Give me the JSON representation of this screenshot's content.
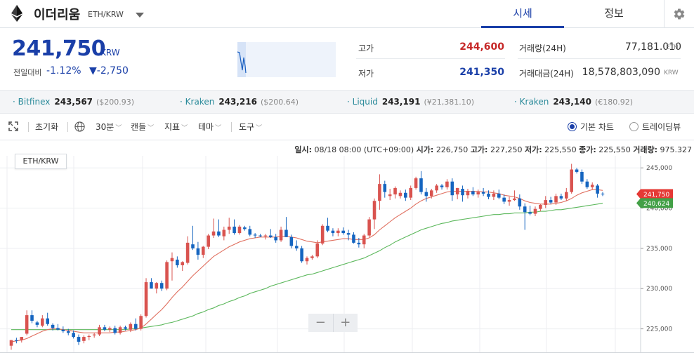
{
  "header": {
    "coin_name": "이더리움",
    "pair": "ETH/KRW",
    "tabs": [
      "시세",
      "정보"
    ]
  },
  "summary": {
    "price": "241,750",
    "unit": "KRW",
    "change_label": "전일대비",
    "change_rate": "-1.12%",
    "change_amount": "▼-2,750",
    "high_label": "고가",
    "high": "244,600",
    "low_label": "저가",
    "low": "241,350",
    "volume_label": "거래량(24H)",
    "volume": "77,181.010",
    "volume_unit": "ETH",
    "value_label": "거래대금(24H)",
    "value": "18,578,803,090",
    "value_unit": "KRW"
  },
  "exchanges": [
    {
      "name": "Bitfinex",
      "price": "243,567",
      "sub": "($200.93)"
    },
    {
      "name": "Kraken",
      "price": "243,216",
      "sub": "($200.64)"
    },
    {
      "name": "Liquid",
      "price": "243,191",
      "sub": "(¥21,381.10)"
    },
    {
      "name": "Kraken",
      "price": "243,140",
      "sub": "(€180.92)"
    }
  ],
  "toolbar": {
    "reset": "초기화",
    "interval": "30분",
    "candle": "캔들",
    "indicator": "지표",
    "theme": "테마",
    "tools": "도구",
    "basic_chart": "기본 차트",
    "tradingview": "트레이딩뷰"
  },
  "ohlc": {
    "time_label": "일시:",
    "time": "08/18 08:00 (UTC+09:00)",
    "open_label": "시가:",
    "open": "226,750",
    "high_label": "고가:",
    "high": "227,250",
    "low_label": "저가:",
    "low": "225,550",
    "close_label": "종가:",
    "close": "225,550",
    "volume_label": "거래량:",
    "volume": "975.327"
  },
  "colors": {
    "up": "#d9534f",
    "down": "#1565c0",
    "ma_short": "#e07060",
    "ma_long": "#5cb85c",
    "accent": "#1a3fa8"
  },
  "chart_data": {
    "type": "candlestick",
    "pair": "ETH/KRW",
    "ylim": [
      222000,
      246500
    ],
    "yticks": [
      "245,000",
      "240,000",
      "235,000",
      "230,000",
      "225,000"
    ],
    "last_price_label": "241,750",
    "ma_long_label": "240,624",
    "candles": [
      {
        "o": 222900,
        "h": 223600,
        "l": 222400,
        "c": 223600
      },
      {
        "o": 223600,
        "h": 223900,
        "l": 223200,
        "c": 223500
      },
      {
        "o": 223600,
        "h": 224000,
        "l": 223300,
        "c": 224000
      },
      {
        "o": 224400,
        "h": 227300,
        "l": 224200,
        "c": 226700
      },
      {
        "o": 226700,
        "h": 227300,
        "l": 225700,
        "c": 226000
      },
      {
        "o": 225800,
        "h": 226000,
        "l": 225200,
        "c": 225500
      },
      {
        "o": 225400,
        "h": 226700,
        "l": 225200,
        "c": 226300
      },
      {
        "o": 226300,
        "h": 227000,
        "l": 225400,
        "c": 225600
      },
      {
        "o": 225500,
        "h": 225700,
        "l": 224800,
        "c": 225100
      },
      {
        "o": 225100,
        "h": 225600,
        "l": 224800,
        "c": 224900
      },
      {
        "o": 224900,
        "h": 225300,
        "l": 224500,
        "c": 224700
      },
      {
        "o": 224700,
        "h": 225000,
        "l": 224200,
        "c": 224500
      },
      {
        "o": 224500,
        "h": 224800,
        "l": 223800,
        "c": 224000
      },
      {
        "o": 224000,
        "h": 224300,
        "l": 223000,
        "c": 223400
      },
      {
        "o": 223500,
        "h": 224200,
        "l": 223200,
        "c": 224000
      },
      {
        "o": 224000,
        "h": 224300,
        "l": 223600,
        "c": 224100
      },
      {
        "o": 224200,
        "h": 224500,
        "l": 223900,
        "c": 224300
      },
      {
        "o": 224300,
        "h": 225500,
        "l": 224100,
        "c": 225200
      },
      {
        "o": 225200,
        "h": 225500,
        "l": 224700,
        "c": 224900
      },
      {
        "o": 224900,
        "h": 225300,
        "l": 224600,
        "c": 225100
      },
      {
        "o": 225100,
        "h": 225400,
        "l": 224300,
        "c": 224500
      },
      {
        "o": 224500,
        "h": 225400,
        "l": 224300,
        "c": 225200
      },
      {
        "o": 225200,
        "h": 225400,
        "l": 224800,
        "c": 225000
      },
      {
        "o": 224900,
        "h": 225800,
        "l": 224600,
        "c": 225600
      },
      {
        "o": 225600,
        "h": 226300,
        "l": 224800,
        "c": 225000
      },
      {
        "o": 225000,
        "h": 226800,
        "l": 224800,
        "c": 226600
      },
      {
        "o": 226600,
        "h": 231300,
        "l": 226400,
        "c": 230800
      },
      {
        "o": 230800,
        "h": 231300,
        "l": 230000,
        "c": 230000
      },
      {
        "o": 230000,
        "h": 230800,
        "l": 229400,
        "c": 230700
      },
      {
        "o": 230700,
        "h": 231000,
        "l": 229700,
        "c": 230000
      },
      {
        "o": 230000,
        "h": 233500,
        "l": 229800,
        "c": 233300
      },
      {
        "o": 233400,
        "h": 234500,
        "l": 231000,
        "c": 233800
      },
      {
        "o": 233600,
        "h": 234000,
        "l": 232600,
        "c": 232900
      },
      {
        "o": 232900,
        "h": 233400,
        "l": 232200,
        "c": 233300
      },
      {
        "o": 233200,
        "h": 236500,
        "l": 233000,
        "c": 235700
      },
      {
        "o": 235500,
        "h": 237800,
        "l": 234800,
        "c": 235000
      },
      {
        "o": 235000,
        "h": 235800,
        "l": 233600,
        "c": 234200
      },
      {
        "o": 234200,
        "h": 235300,
        "l": 233800,
        "c": 235200
      },
      {
        "o": 235200,
        "h": 236800,
        "l": 234900,
        "c": 236600
      },
      {
        "o": 236600,
        "h": 238700,
        "l": 236300,
        "c": 237100
      },
      {
        "o": 237100,
        "h": 238600,
        "l": 236400,
        "c": 236600
      },
      {
        "o": 236500,
        "h": 237700,
        "l": 236000,
        "c": 237300
      },
      {
        "o": 237300,
        "h": 238800,
        "l": 236800,
        "c": 237700
      },
      {
        "o": 237700,
        "h": 238600,
        "l": 236700,
        "c": 236900
      },
      {
        "o": 236900,
        "h": 237900,
        "l": 236700,
        "c": 237700
      },
      {
        "o": 237600,
        "h": 237800,
        "l": 237200,
        "c": 237400
      },
      {
        "o": 237400,
        "h": 237800,
        "l": 236500,
        "c": 236700
      },
      {
        "o": 236700,
        "h": 236900,
        "l": 236300,
        "c": 236600
      },
      {
        "o": 236600,
        "h": 236800,
        "l": 236400,
        "c": 236500
      },
      {
        "o": 236500,
        "h": 236800,
        "l": 236100,
        "c": 236600
      },
      {
        "o": 236600,
        "h": 237400,
        "l": 236300,
        "c": 236400
      },
      {
        "o": 236400,
        "h": 236800,
        "l": 235700,
        "c": 236000
      },
      {
        "o": 236000,
        "h": 237700,
        "l": 235800,
        "c": 237300
      },
      {
        "o": 237300,
        "h": 238900,
        "l": 236400,
        "c": 236400
      },
      {
        "o": 236400,
        "h": 236700,
        "l": 235000,
        "c": 235300
      },
      {
        "o": 235300,
        "h": 236000,
        "l": 234700,
        "c": 235000
      },
      {
        "o": 235000,
        "h": 235300,
        "l": 233200,
        "c": 233400
      },
      {
        "o": 233400,
        "h": 234000,
        "l": 233000,
        "c": 233800
      },
      {
        "o": 233800,
        "h": 234200,
        "l": 233600,
        "c": 234000
      },
      {
        "o": 234000,
        "h": 236000,
        "l": 233800,
        "c": 235600
      },
      {
        "o": 235600,
        "h": 238000,
        "l": 235400,
        "c": 237800
      },
      {
        "o": 237800,
        "h": 238800,
        "l": 237000,
        "c": 237200
      },
      {
        "o": 237200,
        "h": 237500,
        "l": 236500,
        "c": 236900
      },
      {
        "o": 236900,
        "h": 237500,
        "l": 236500,
        "c": 237200
      },
      {
        "o": 237200,
        "h": 237600,
        "l": 236700,
        "c": 236900
      },
      {
        "o": 236900,
        "h": 237300,
        "l": 236000,
        "c": 236700
      },
      {
        "o": 236700,
        "h": 237000,
        "l": 235600,
        "c": 235700
      },
      {
        "o": 235700,
        "h": 236300,
        "l": 235100,
        "c": 235500
      },
      {
        "o": 235500,
        "h": 236800,
        "l": 235000,
        "c": 236600
      },
      {
        "o": 236600,
        "h": 238900,
        "l": 236400,
        "c": 238600
      },
      {
        "o": 238600,
        "h": 241200,
        "l": 237400,
        "c": 240900
      },
      {
        "o": 240900,
        "h": 244200,
        "l": 239800,
        "c": 243000
      },
      {
        "o": 243000,
        "h": 243400,
        "l": 241300,
        "c": 242000
      },
      {
        "o": 241500,
        "h": 242400,
        "l": 241000,
        "c": 241700
      },
      {
        "o": 241700,
        "h": 242700,
        "l": 241200,
        "c": 242500
      },
      {
        "o": 241500,
        "h": 242200,
        "l": 241200,
        "c": 241900
      },
      {
        "o": 241900,
        "h": 242300,
        "l": 240900,
        "c": 241300
      },
      {
        "o": 241300,
        "h": 242800,
        "l": 241000,
        "c": 242500
      },
      {
        "o": 242500,
        "h": 243900,
        "l": 242300,
        "c": 243700
      },
      {
        "o": 243700,
        "h": 244600,
        "l": 241700,
        "c": 242000
      },
      {
        "o": 242000,
        "h": 242500,
        "l": 240800,
        "c": 241500
      },
      {
        "o": 241500,
        "h": 242400,
        "l": 241200,
        "c": 242200
      },
      {
        "o": 242200,
        "h": 243000,
        "l": 241900,
        "c": 242800
      },
      {
        "o": 242800,
        "h": 243000,
        "l": 242300,
        "c": 242600
      },
      {
        "o": 242600,
        "h": 243600,
        "l": 242300,
        "c": 243300
      },
      {
        "o": 243300,
        "h": 243700,
        "l": 240900,
        "c": 241600
      },
      {
        "o": 241700,
        "h": 242500,
        "l": 241100,
        "c": 242500
      },
      {
        "o": 242400,
        "h": 242800,
        "l": 240800,
        "c": 241600
      },
      {
        "o": 241600,
        "h": 242400,
        "l": 241200,
        "c": 242100
      },
      {
        "o": 242100,
        "h": 242600,
        "l": 241500,
        "c": 241700
      },
      {
        "o": 241700,
        "h": 242300,
        "l": 241300,
        "c": 242000
      },
      {
        "o": 242000,
        "h": 242500,
        "l": 241500,
        "c": 241800
      },
      {
        "o": 241800,
        "h": 242200,
        "l": 241100,
        "c": 241400
      },
      {
        "o": 241400,
        "h": 242200,
        "l": 241000,
        "c": 241800
      },
      {
        "o": 241800,
        "h": 242300,
        "l": 241100,
        "c": 241300
      },
      {
        "o": 241300,
        "h": 241700,
        "l": 240500,
        "c": 240800
      },
      {
        "o": 240800,
        "h": 241400,
        "l": 240300,
        "c": 241000
      },
      {
        "o": 241000,
        "h": 242200,
        "l": 240900,
        "c": 241200
      },
      {
        "o": 241200,
        "h": 241700,
        "l": 239800,
        "c": 240200
      },
      {
        "o": 240200,
        "h": 240600,
        "l": 237300,
        "c": 239500
      },
      {
        "o": 239500,
        "h": 240300,
        "l": 239100,
        "c": 239300
      },
      {
        "o": 239300,
        "h": 240200,
        "l": 239000,
        "c": 239900
      },
      {
        "o": 239900,
        "h": 240500,
        "l": 239600,
        "c": 240400
      },
      {
        "o": 240400,
        "h": 241500,
        "l": 240000,
        "c": 241000
      },
      {
        "o": 241000,
        "h": 241400,
        "l": 240500,
        "c": 240700
      },
      {
        "o": 240700,
        "h": 241800,
        "l": 240400,
        "c": 241500
      },
      {
        "o": 241500,
        "h": 241800,
        "l": 241000,
        "c": 241200
      },
      {
        "o": 241200,
        "h": 242500,
        "l": 240900,
        "c": 242000
      },
      {
        "o": 242000,
        "h": 245500,
        "l": 241800,
        "c": 244800
      },
      {
        "o": 244800,
        "h": 245000,
        "l": 244300,
        "c": 244500
      },
      {
        "o": 244500,
        "h": 244800,
        "l": 243000,
        "c": 243300
      },
      {
        "o": 243300,
        "h": 243600,
        "l": 242400,
        "c": 242600
      },
      {
        "o": 242600,
        "h": 243200,
        "l": 242300,
        "c": 242900
      },
      {
        "o": 242800,
        "h": 243000,
        "l": 241300,
        "c": 241800
      },
      {
        "o": 241800,
        "h": 242000,
        "l": 241500,
        "c": 241750
      }
    ],
    "ma_short": [
      223400,
      223500,
      223600,
      223800,
      224100,
      224400,
      224700,
      224900,
      225000,
      225000,
      224900,
      224800,
      224700,
      224600,
      224500,
      224500,
      224500,
      224500,
      224500,
      224500,
      224600,
      224600,
      224700,
      224800,
      224900,
      225100,
      225600,
      226200,
      226800,
      227400,
      228100,
      228900,
      229600,
      230200,
      230900,
      231600,
      232200,
      232800,
      233400,
      234000,
      234400,
      234800,
      235200,
      235500,
      235800,
      236000,
      236200,
      236300,
      236400,
      236400,
      236400,
      236400,
      236500,
      236500,
      236400,
      236300,
      236100,
      235900,
      235800,
      235700,
      235800,
      235900,
      236000,
      236100,
      236200,
      236200,
      236100,
      236100,
      236100,
      236300,
      236700,
      237300,
      237800,
      238300,
      238800,
      239200,
      239600,
      240000,
      240500,
      240900,
      241200,
      241400,
      241600,
      241800,
      242000,
      242100,
      242100,
      242100,
      242100,
      242100,
      242100,
      242000,
      242000,
      241900,
      241800,
      241600,
      241500,
      241400,
      241200,
      240900,
      240700,
      240600,
      240500,
      240500,
      240500,
      240600,
      240700,
      240900,
      241200,
      241600,
      241900,
      242100,
      242300,
      242300,
      242200
    ],
    "ma_long": [
      224900,
      224900,
      224900,
      224900,
      224900,
      224900,
      224900,
      224900,
      224900,
      224900,
      224900,
      224900,
      224900,
      224900,
      224900,
      224900,
      224900,
      224900,
      224900,
      224900,
      224900,
      224900,
      224900,
      225000,
      225000,
      225100,
      225200,
      225300,
      225400,
      225500,
      225700,
      225800,
      226000,
      226200,
      226400,
      226600,
      226900,
      227100,
      227400,
      227600,
      227900,
      228100,
      228400,
      228600,
      228900,
      229100,
      229400,
      229600,
      229800,
      230000,
      230300,
      230500,
      230700,
      230900,
      231100,
      231300,
      231500,
      231700,
      231800,
      232000,
      232200,
      232400,
      232600,
      232800,
      233000,
      233200,
      233400,
      233600,
      233800,
      234100,
      234400,
      234700,
      235100,
      235400,
      235800,
      236100,
      236400,
      236700,
      237000,
      237300,
      237500,
      237700,
      237900,
      238100,
      238200,
      238400,
      238500,
      238600,
      238700,
      238800,
      238900,
      239000,
      239100,
      239200,
      239200,
      239300,
      239300,
      239400,
      239400,
      239400,
      239500,
      239500,
      239600,
      239600,
      239700,
      239800,
      239800,
      239900,
      240000,
      240100,
      240200,
      240300,
      240400,
      240500,
      240624
    ]
  }
}
